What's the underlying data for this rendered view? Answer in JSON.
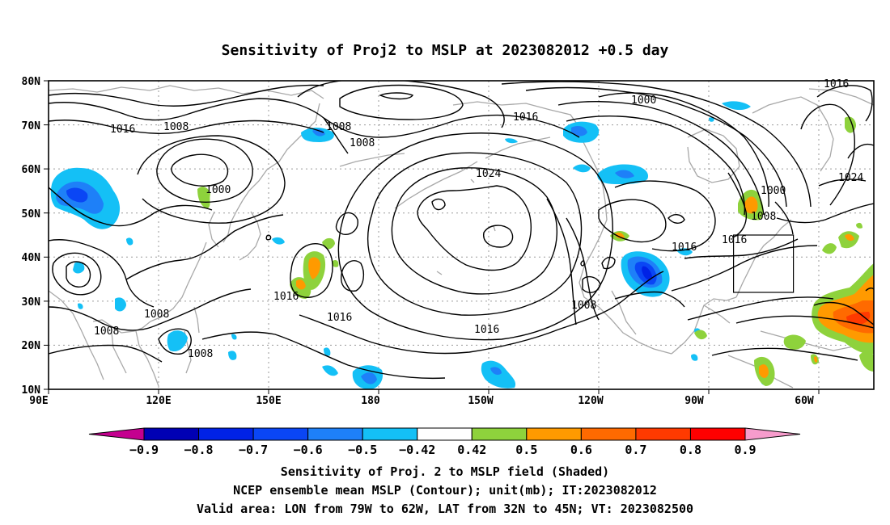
{
  "title": "Sensitivity of Proj2 to MSLP at 2023082012 +0.5 day",
  "axes": {
    "lat_labels": [
      "80N",
      "70N",
      "60N",
      "50N",
      "40N",
      "30N",
      "20N",
      "10N"
    ],
    "lon_labels": [
      "90E",
      "120E",
      "150E",
      "180",
      "150W",
      "120W",
      "90W",
      "60W"
    ]
  },
  "contour_labels": [
    {
      "text": "1016",
      "id": "c1016-a"
    },
    {
      "text": "1008",
      "id": "c1008-a"
    },
    {
      "text": "1008",
      "id": "c1008-b"
    },
    {
      "text": "1008",
      "id": "c1008-c"
    },
    {
      "text": "1000",
      "id": "c1000-a"
    },
    {
      "text": "1016",
      "id": "c1016-b"
    },
    {
      "text": "1024",
      "id": "c1024-a"
    },
    {
      "text": "1000",
      "id": "c1000-b"
    },
    {
      "text": "1016",
      "id": "c1016-c"
    },
    {
      "text": "1000",
      "id": "c1000-c"
    },
    {
      "text": "1008",
      "id": "c1008-d"
    },
    {
      "text": "1024",
      "id": "c1024-b"
    },
    {
      "text": "1016",
      "id": "c1016-d"
    },
    {
      "text": "1016",
      "id": "c1016-e"
    },
    {
      "text": "1008",
      "id": "c1008-e"
    },
    {
      "text": "1016",
      "id": "c1016-f"
    },
    {
      "text": "1016",
      "id": "c1016-g"
    },
    {
      "text": "1016",
      "id": "c1016-h"
    },
    {
      "text": "1008",
      "id": "c1008-f"
    },
    {
      "text": "1008",
      "id": "c1008-g"
    },
    {
      "text": "1008",
      "id": "c1008-h"
    }
  ],
  "colorbar": {
    "labels": [
      "-0.9",
      "-0.8",
      "-0.7",
      "-0.6",
      "-0.5",
      "-0.42",
      "0.42",
      "0.5",
      "0.6",
      "0.7",
      "0.8",
      "0.9"
    ],
    "colors": [
      "#c4008f",
      "#0000b4",
      "#0022e6",
      "#0a46f5",
      "#1e80f8",
      "#14c0f6",
      "#ffffff",
      "#8ed23c",
      "#ff9a00",
      "#ff6a00",
      "#ff3a00",
      "#ff0000",
      "#f79ccc"
    ]
  },
  "footer": {
    "line1": "Sensitivity of Proj. 2 to MSLP field (Shaded)",
    "line2": "NCEP ensemble mean MSLP (Contour); unit(mb); IT:2023082012",
    "line3": "Valid area: LON from 79W to 62W, LAT from 32N to 45N; VT: 2023082500"
  },
  "verification_box": {
    "lon_min": "79W",
    "lon_max": "62W",
    "lat_min": "32N",
    "lat_max": "45N"
  }
}
